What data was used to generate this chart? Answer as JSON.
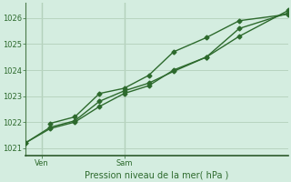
{
  "title": "Pression niveau de la mer( hPa )",
  "bg_color": "#d4ede0",
  "grid_color": "#b8d4c0",
  "line_color": "#2d6a2d",
  "vline_color": "#4a7a4a",
  "ylim": [
    1020.7,
    1026.6
  ],
  "yticks": [
    1021,
    1022,
    1023,
    1024,
    1025,
    1026
  ],
  "xlim": [
    0,
    16
  ],
  "x_ven_pos": 1,
  "x_sam_pos": 6,
  "xtick_positions": [
    1,
    6
  ],
  "xtick_labels": [
    "Ven",
    "Sam"
  ],
  "series1_x": [
    0,
    1.5,
    3,
    4.5,
    6,
    7.5,
    9,
    11,
    13,
    16
  ],
  "series1_y": [
    1021.2,
    1021.8,
    1022.05,
    1022.8,
    1023.2,
    1023.5,
    1023.95,
    1024.5,
    1025.3,
    1026.3
  ],
  "series2_x": [
    0,
    1.5,
    3,
    4.5,
    6,
    7.5,
    9,
    11,
    13,
    16
  ],
  "series2_y": [
    1021.2,
    1021.75,
    1022.0,
    1022.6,
    1023.1,
    1023.4,
    1024.0,
    1024.5,
    1025.6,
    1026.2
  ],
  "series3_x": [
    1.5,
    3,
    4.5,
    6,
    7.5,
    9,
    11,
    13,
    16
  ],
  "series3_y": [
    1021.95,
    1022.2,
    1023.1,
    1023.3,
    1023.8,
    1024.7,
    1025.25,
    1025.9,
    1026.15
  ],
  "marker": "D",
  "markersize": 2.5,
  "linewidth": 1.0,
  "xlabel_fontsize": 7,
  "ytick_fontsize": 6,
  "xtick_fontsize": 6
}
